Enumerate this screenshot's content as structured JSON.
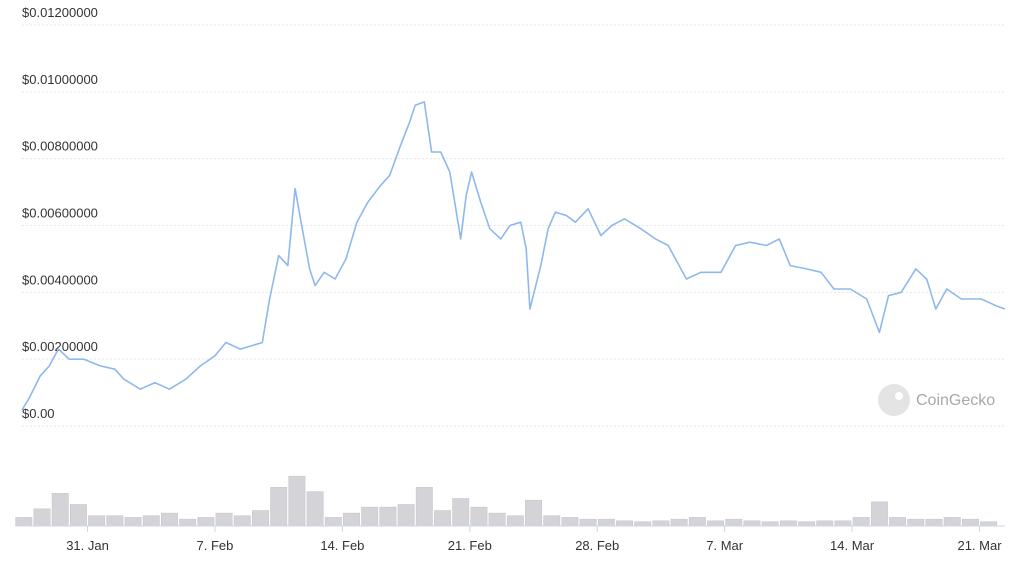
{
  "chart_data": {
    "type": "line",
    "x": [
      27.4,
      27.8,
      28.4,
      28.9,
      29.4,
      30.0,
      30.8,
      31.7,
      32.5,
      33.0,
      33.9,
      34.7,
      35.5,
      36.4,
      37.2,
      38.0,
      38.6,
      39.4,
      40.6,
      41.0,
      41.5,
      42.0,
      42.4,
      42.8,
      43.2,
      43.5,
      44.0,
      44.6,
      45.2,
      45.8,
      46.4,
      47.1,
      47.6,
      48.2,
      48.7,
      49.0,
      49.5,
      49.9,
      50.4,
      50.9,
      51.5,
      51.8,
      52.1,
      52.6,
      53.1,
      53.7,
      54.2,
      54.8,
      55.1,
      55.3,
      55.9,
      56.3,
      56.7,
      57.3,
      57.8,
      58.5,
      59.2,
      59.8,
      60.5,
      61.4,
      62.2,
      62.9,
      63.9,
      64.7,
      65.8,
      66.6,
      67.4,
      68.3,
      69.0,
      69.6,
      70.5,
      71.3,
      72.0,
      72.9,
      73.8,
      74.5,
      75.0,
      75.7,
      76.5,
      77.1,
      77.6,
      78.2,
      79.0,
      80.1,
      80.9,
      81.4
    ],
    "values": [
      0.00048,
      0.00084,
      0.0015,
      0.0018,
      0.0023,
      0.002,
      0.002,
      0.0018,
      0.0017,
      0.0014,
      0.0011,
      0.0013,
      0.0011,
      0.0014,
      0.0018,
      0.0021,
      0.0025,
      0.0023,
      0.0025,
      0.0038,
      0.0051,
      0.0048,
      0.0071,
      0.0059,
      0.0047,
      0.0042,
      0.0046,
      0.0044,
      0.005,
      0.0061,
      0.0067,
      0.0072,
      0.0075,
      0.0084,
      0.0091,
      0.0096,
      0.0097,
      0.0082,
      0.0082,
      0.0076,
      0.0056,
      0.0069,
      0.0076,
      0.0067,
      0.0059,
      0.0056,
      0.006,
      0.0061,
      0.0053,
      0.0035,
      0.0048,
      0.0059,
      0.0064,
      0.0063,
      0.0061,
      0.0065,
      0.0057,
      0.006,
      0.0062,
      0.0059,
      0.0056,
      0.0054,
      0.0044,
      0.0046,
      0.0046,
      0.0054,
      0.0055,
      0.0054,
      0.0056,
      0.0048,
      0.0047,
      0.0046,
      0.0041,
      0.0041,
      0.0038,
      0.0028,
      0.0039,
      0.004,
      0.0047,
      0.0044,
      0.0035,
      0.0041,
      0.0038,
      0.0038,
      0.0036,
      0.0035
    ],
    "color": "#8fb8ec",
    "xlim": [
      27.4,
      81.4
    ],
    "xticks": [
      {
        "value": 31,
        "label": "31. Jan"
      },
      {
        "value": 38,
        "label": "7. Feb"
      },
      {
        "value": 45,
        "label": "14. Feb"
      },
      {
        "value": 52,
        "label": "21. Feb"
      },
      {
        "value": 59,
        "label": "28. Feb"
      },
      {
        "value": 66,
        "label": "7. Mar"
      },
      {
        "value": 73,
        "label": "14. Mar"
      },
      {
        "value": 80,
        "label": "21. Mar"
      }
    ],
    "ylim": [
      0,
      0.012
    ],
    "yticks": [
      {
        "value": 0,
        "label": "$0.00"
      },
      {
        "value": 0.002,
        "label": "$0.00200000"
      },
      {
        "value": 0.004,
        "label": "$0.00400000"
      },
      {
        "value": 0.006,
        "label": "$0.00600000"
      },
      {
        "value": 0.008,
        "label": "$0.00800000"
      },
      {
        "value": 0.01,
        "label": "$0.01000000"
      },
      {
        "value": 0.012,
        "label": "$0.01200000"
      }
    ],
    "grid": true,
    "volume": {
      "type": "bar",
      "color": "#d4d4d8",
      "x": [
        27.5,
        28.5,
        29.5,
        30.5,
        31.5,
        32.5,
        33.5,
        34.5,
        35.5,
        36.5,
        37.5,
        38.5,
        39.5,
        40.5,
        41.5,
        42.5,
        43.5,
        44.5,
        45.5,
        46.5,
        47.5,
        48.5,
        49.5,
        50.5,
        51.5,
        52.5,
        53.5,
        54.5,
        55.5,
        56.5,
        57.5,
        58.5,
        59.5,
        60.5,
        61.5,
        62.5,
        63.5,
        64.5,
        65.5,
        66.5,
        67.5,
        68.5,
        69.5,
        70.5,
        71.5,
        72.5,
        73.5,
        74.5,
        75.5,
        76.5,
        77.5,
        78.5,
        79.5,
        80.5
      ],
      "values": [
        10,
        20,
        38,
        25,
        12,
        12,
        10,
        12,
        15,
        8,
        10,
        15,
        12,
        18,
        45,
        58,
        40,
        10,
        15,
        22,
        22,
        25,
        45,
        18,
        32,
        22,
        15,
        12,
        30,
        12,
        10,
        8,
        8,
        6,
        5,
        6,
        8,
        10,
        6,
        8,
        6,
        5,
        6,
        5,
        6,
        6,
        10,
        28,
        10,
        8,
        8,
        10,
        8,
        5
      ],
      "ylim": [
        0,
        100
      ]
    },
    "watermark": "CoinGecko"
  }
}
